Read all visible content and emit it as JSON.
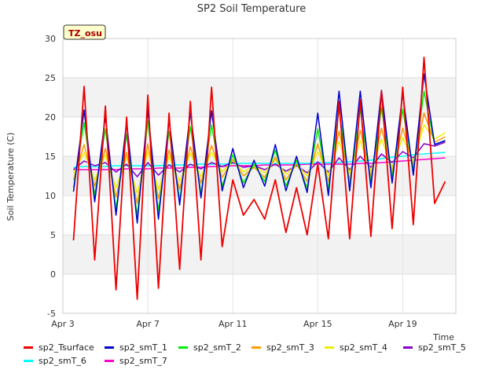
{
  "chart_data": {
    "type": "line",
    "title": "SP2 Soil Temperature",
    "xlabel": "Time",
    "ylabel": "Soil Temperature (C)",
    "ylim": [
      -5,
      30
    ],
    "yticks": [
      -5,
      0,
      5,
      10,
      15,
      20,
      25,
      30
    ],
    "xlim": [
      3,
      21.5
    ],
    "xticks": [
      3,
      7,
      11,
      15,
      19
    ],
    "xtick_labels": [
      "Apr 3",
      "Apr 7",
      "Apr 11",
      "Apr 15",
      "Apr 19"
    ],
    "annotation": "TZ_osu",
    "x": [
      3.5,
      4.0,
      4.5,
      5.0,
      5.5,
      6.0,
      6.5,
      7.0,
      7.5,
      8.0,
      8.5,
      9.0,
      9.5,
      10.0,
      10.5,
      11.0,
      11.5,
      12.0,
      12.5,
      13.0,
      13.5,
      14.0,
      14.5,
      15.0,
      15.5,
      16.0,
      16.5,
      17.0,
      17.5,
      18.0,
      18.5,
      19.0,
      19.5,
      20.0,
      20.5,
      21.0
    ],
    "series": [
      {
        "name": "sp2_Tsurface",
        "color": "#ee0000",
        "values": [
          4.3,
          23.9,
          1.8,
          21.4,
          -2.0,
          20.0,
          -3.2,
          22.8,
          -1.8,
          20.5,
          0.6,
          22.0,
          1.8,
          23.8,
          3.5,
          12.0,
          7.5,
          9.5,
          7.0,
          12.0,
          5.3,
          11.0,
          5.0,
          14.0,
          4.5,
          22.0,
          4.5,
          22.2,
          4.8,
          23.3,
          5.8,
          23.8,
          6.3,
          27.6,
          9.0,
          11.8
        ]
      },
      {
        "name": "sp2_smT_1",
        "color": "#0000cc",
        "values": [
          10.5,
          20.9,
          9.2,
          20.1,
          7.5,
          19.4,
          6.5,
          20.9,
          7.0,
          19.6,
          8.8,
          20.6,
          9.7,
          20.8,
          10.6,
          16.0,
          11.0,
          14.5,
          11.2,
          16.5,
          10.6,
          15.0,
          10.4,
          20.5,
          10.0,
          23.3,
          10.6,
          23.3,
          11.0,
          23.4,
          11.6,
          23.0,
          12.6,
          25.5,
          16.5,
          17.0
        ]
      },
      {
        "name": "sp2_smT_2",
        "color": "#00ee00",
        "values": [
          11.0,
          19.3,
          10.0,
          18.5,
          8.3,
          17.8,
          7.4,
          19.5,
          8.0,
          18.2,
          9.4,
          18.8,
          10.3,
          19.0,
          11.2,
          15.2,
          11.6,
          14.0,
          11.8,
          15.8,
          11.2,
          14.5,
          11.0,
          18.5,
          10.8,
          21.0,
          11.2,
          21.0,
          11.6,
          21.2,
          12.3,
          21.0,
          13.2,
          23.3,
          16.5,
          17.0
        ]
      },
      {
        "name": "sp2_smT_3",
        "color": "#ff9900",
        "values": [
          12.0,
          16.5,
          11.2,
          16.0,
          9.8,
          15.5,
          9.0,
          16.6,
          9.6,
          15.8,
          10.8,
          16.2,
          11.6,
          16.4,
          12.3,
          14.6,
          12.5,
          13.6,
          12.3,
          14.9,
          12.0,
          14.0,
          11.8,
          16.6,
          11.8,
          18.2,
          12.0,
          18.3,
          12.4,
          18.6,
          13.0,
          18.6,
          13.8,
          20.5,
          16.8,
          17.5
        ]
      },
      {
        "name": "sp2_smT_4",
        "color": "#eeee00",
        "values": [
          12.8,
          15.5,
          12.0,
          15.2,
          11.0,
          14.9,
          10.3,
          15.6,
          10.8,
          15.0,
          11.8,
          15.4,
          12.4,
          15.5,
          13.0,
          14.5,
          13.0,
          13.8,
          12.9,
          14.6,
          12.7,
          14.0,
          12.5,
          15.6,
          12.6,
          16.9,
          12.8,
          17.0,
          13.1,
          17.2,
          13.6,
          17.4,
          14.3,
          19.0,
          17.2,
          18.0
        ]
      },
      {
        "name": "sp2_smT_5",
        "color": "#8800cc",
        "values": [
          13.3,
          14.4,
          13.8,
          14.2,
          13.0,
          14.0,
          12.4,
          14.2,
          12.6,
          13.9,
          13.0,
          14.0,
          13.4,
          14.2,
          13.7,
          14.2,
          13.6,
          13.8,
          13.3,
          14.0,
          13.1,
          13.8,
          12.9,
          14.3,
          13.0,
          14.8,
          13.3,
          15.0,
          13.6,
          15.3,
          14.2,
          15.6,
          14.8,
          16.6,
          16.3,
          16.8
        ]
      },
      {
        "name": "sp2_smT_6",
        "color": "#00ffff",
        "values": [
          13.6,
          13.7,
          13.7,
          13.7,
          13.8,
          13.8,
          13.8,
          13.8,
          13.8,
          13.9,
          13.9,
          13.9,
          14.0,
          14.0,
          14.0,
          14.1,
          14.1,
          14.1,
          14.1,
          14.1,
          14.1,
          14.1,
          14.1,
          14.2,
          14.2,
          14.2,
          14.3,
          14.4,
          14.5,
          14.7,
          14.9,
          15.0,
          15.2,
          15.3,
          15.4,
          15.5
        ]
      },
      {
        "name": "sp2_smT_7",
        "color": "#ff00cc",
        "values": [
          13.3,
          13.3,
          13.3,
          13.3,
          13.3,
          13.4,
          13.4,
          13.4,
          13.5,
          13.5,
          13.5,
          13.6,
          13.6,
          13.7,
          13.7,
          13.8,
          13.8,
          13.8,
          13.9,
          13.9,
          13.9,
          13.9,
          14.0,
          14.0,
          14.0,
          14.0,
          14.0,
          14.1,
          14.1,
          14.2,
          14.3,
          14.4,
          14.5,
          14.6,
          14.7,
          14.8
        ]
      }
    ]
  }
}
